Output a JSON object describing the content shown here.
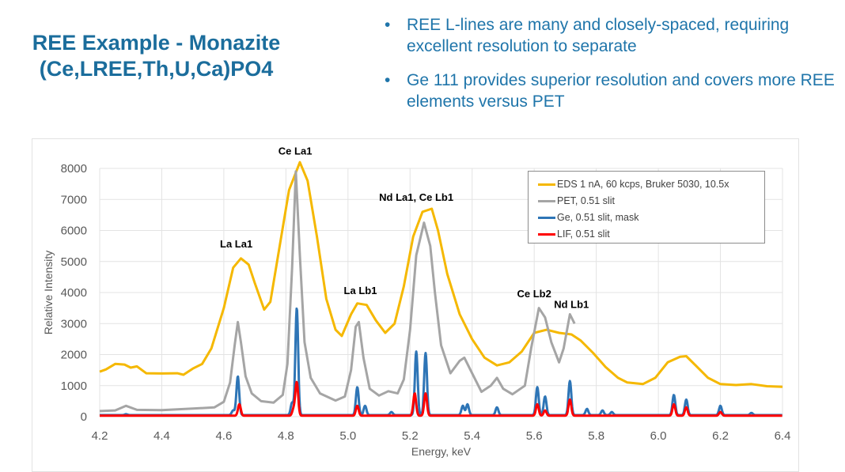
{
  "slide": {
    "title_line1": "REE Example - Monazite",
    "title_line2": "(Ce,LREE,Th,U,Ca)PO4",
    "bullets": [
      "REE L-lines are many and closely-spaced, requiring excellent resolution to separate",
      "Ge 111 provides superior resolution and covers more REE elements versus PET"
    ],
    "bullet_glyph": "•"
  },
  "chart_data": {
    "type": "line",
    "xlabel": "Energy, keV",
    "ylabel": "Relative Intensity",
    "xlim": [
      4.2,
      6.4
    ],
    "ylim": [
      0,
      8000
    ],
    "xticks": [
      "4.2",
      "4.4",
      "4.6",
      "4.8",
      "5.0",
      "5.2",
      "5.4",
      "5.6",
      "5.8",
      "6.0",
      "6.2",
      "6.4"
    ],
    "yticks": [
      "0",
      "1000",
      "2000",
      "3000",
      "4000",
      "5000",
      "6000",
      "7000",
      "8000"
    ],
    "grid": true,
    "legend_position": "top-right",
    "annotations": [
      {
        "text": "La La1",
        "x": 4.64,
        "y": 5450
      },
      {
        "text": "Ce La1",
        "x": 4.83,
        "y": 8450
      },
      {
        "text": "La Lb1",
        "x": 5.04,
        "y": 3950
      },
      {
        "text": "Nd La1, Ce Lb1",
        "x": 5.22,
        "y": 6950
      },
      {
        "text": "Ce Lb2",
        "x": 5.6,
        "y": 3850
      },
      {
        "text": "Nd Lb1",
        "x": 5.72,
        "y": 3500
      }
    ],
    "series": [
      {
        "name": "EDS 1 nA, 60 kcps, Bruker 5030, 10.5x",
        "color": "#f5b800",
        "style": "points",
        "points": [
          [
            4.2,
            1450
          ],
          [
            4.22,
            1520
          ],
          [
            4.25,
            1700
          ],
          [
            4.28,
            1680
          ],
          [
            4.3,
            1580
          ],
          [
            4.32,
            1620
          ],
          [
            4.35,
            1400
          ],
          [
            4.4,
            1390
          ],
          [
            4.45,
            1400
          ],
          [
            4.47,
            1350
          ],
          [
            4.5,
            1550
          ],
          [
            4.53,
            1700
          ],
          [
            4.56,
            2200
          ],
          [
            4.6,
            3500
          ],
          [
            4.63,
            4800
          ],
          [
            4.655,
            5100
          ],
          [
            4.68,
            4900
          ],
          [
            4.7,
            4300
          ],
          [
            4.73,
            3450
          ],
          [
            4.75,
            3700
          ],
          [
            4.78,
            5500
          ],
          [
            4.81,
            7300
          ],
          [
            4.845,
            8200
          ],
          [
            4.87,
            7600
          ],
          [
            4.9,
            5800
          ],
          [
            4.93,
            3800
          ],
          [
            4.96,
            2800
          ],
          [
            4.98,
            2600
          ],
          [
            5.01,
            3300
          ],
          [
            5.03,
            3650
          ],
          [
            5.06,
            3600
          ],
          [
            5.09,
            3100
          ],
          [
            5.12,
            2700
          ],
          [
            5.15,
            3000
          ],
          [
            5.18,
            4200
          ],
          [
            5.21,
            5800
          ],
          [
            5.24,
            6600
          ],
          [
            5.27,
            6700
          ],
          [
            5.29,
            6000
          ],
          [
            5.32,
            4600
          ],
          [
            5.36,
            3300
          ],
          [
            5.4,
            2500
          ],
          [
            5.44,
            1900
          ],
          [
            5.48,
            1650
          ],
          [
            5.52,
            1750
          ],
          [
            5.56,
            2100
          ],
          [
            5.6,
            2700
          ],
          [
            5.64,
            2800
          ],
          [
            5.68,
            2700
          ],
          [
            5.72,
            2650
          ],
          [
            5.75,
            2450
          ],
          [
            5.79,
            2050
          ],
          [
            5.83,
            1600
          ],
          [
            5.87,
            1250
          ],
          [
            5.9,
            1100
          ],
          [
            5.95,
            1050
          ],
          [
            5.99,
            1250
          ],
          [
            6.03,
            1750
          ],
          [
            6.07,
            1930
          ],
          [
            6.09,
            1950
          ],
          [
            6.12,
            1650
          ],
          [
            6.16,
            1250
          ],
          [
            6.2,
            1050
          ],
          [
            6.25,
            1020
          ],
          [
            6.3,
            1050
          ],
          [
            6.35,
            980
          ],
          [
            6.4,
            960
          ]
        ]
      },
      {
        "name": "PET, 0.51 slit",
        "color": "#a5a5a5",
        "style": "points",
        "points": [
          [
            4.2,
            180
          ],
          [
            4.25,
            200
          ],
          [
            4.285,
            350
          ],
          [
            4.32,
            220
          ],
          [
            4.4,
            210
          ],
          [
            4.5,
            260
          ],
          [
            4.57,
            300
          ],
          [
            4.6,
            480
          ],
          [
            4.62,
            1100
          ],
          [
            4.635,
            2300
          ],
          [
            4.645,
            3050
          ],
          [
            4.655,
            2400
          ],
          [
            4.67,
            1300
          ],
          [
            4.69,
            750
          ],
          [
            4.72,
            500
          ],
          [
            4.76,
            450
          ],
          [
            4.79,
            700
          ],
          [
            4.805,
            1700
          ],
          [
            4.82,
            4800
          ],
          [
            4.832,
            7900
          ],
          [
            4.845,
            5200
          ],
          [
            4.86,
            2400
          ],
          [
            4.88,
            1250
          ],
          [
            4.91,
            750
          ],
          [
            4.96,
            520
          ],
          [
            4.99,
            650
          ],
          [
            5.01,
            1500
          ],
          [
            5.025,
            2900
          ],
          [
            5.035,
            3050
          ],
          [
            5.05,
            1900
          ],
          [
            5.07,
            900
          ],
          [
            5.1,
            680
          ],
          [
            5.13,
            820
          ],
          [
            5.16,
            750
          ],
          [
            5.18,
            1200
          ],
          [
            5.2,
            2800
          ],
          [
            5.22,
            5200
          ],
          [
            5.245,
            6250
          ],
          [
            5.265,
            5500
          ],
          [
            5.28,
            4000
          ],
          [
            5.3,
            2300
          ],
          [
            5.33,
            1400
          ],
          [
            5.36,
            1800
          ],
          [
            5.375,
            1900
          ],
          [
            5.4,
            1400
          ],
          [
            5.43,
            800
          ],
          [
            5.46,
            1000
          ],
          [
            5.48,
            1250
          ],
          [
            5.5,
            900
          ],
          [
            5.53,
            720
          ],
          [
            5.57,
            1000
          ],
          [
            5.59,
            2200
          ],
          [
            5.615,
            3500
          ],
          [
            5.635,
            3200
          ],
          [
            5.655,
            2400
          ],
          [
            5.68,
            1750
          ],
          [
            5.695,
            2200
          ],
          [
            5.715,
            3300
          ],
          [
            5.73,
            3000
          ]
        ]
      },
      {
        "name": "Ge, 0.51 slit, mask",
        "color": "#2e75b6",
        "style": "peaks",
        "baseline": 50,
        "peaks": [
          [
            4.285,
            80
          ],
          [
            4.63,
            200
          ],
          [
            4.645,
            1300
          ],
          [
            4.82,
            450
          ],
          [
            4.835,
            3500
          ],
          [
            5.03,
            950
          ],
          [
            5.055,
            350
          ],
          [
            5.14,
            150
          ],
          [
            5.22,
            2100
          ],
          [
            5.25,
            2050
          ],
          [
            5.37,
            350
          ],
          [
            5.385,
            400
          ],
          [
            5.48,
            300
          ],
          [
            5.61,
            950
          ],
          [
            5.635,
            650
          ],
          [
            5.715,
            1150
          ],
          [
            5.77,
            250
          ],
          [
            5.82,
            200
          ],
          [
            5.85,
            150
          ],
          [
            6.05,
            700
          ],
          [
            6.09,
            550
          ],
          [
            6.2,
            350
          ],
          [
            6.3,
            120
          ]
        ]
      },
      {
        "name": "LIF, 0.51 slit",
        "color": "#ff0000",
        "style": "peaks",
        "baseline": 30,
        "peaks": [
          [
            4.65,
            400
          ],
          [
            4.825,
            250
          ],
          [
            4.835,
            1100
          ],
          [
            5.03,
            350
          ],
          [
            5.215,
            750
          ],
          [
            5.25,
            750
          ],
          [
            5.61,
            400
          ],
          [
            5.635,
            200
          ],
          [
            5.715,
            550
          ],
          [
            6.05,
            400
          ],
          [
            6.09,
            300
          ],
          [
            6.2,
            150
          ]
        ]
      }
    ]
  }
}
